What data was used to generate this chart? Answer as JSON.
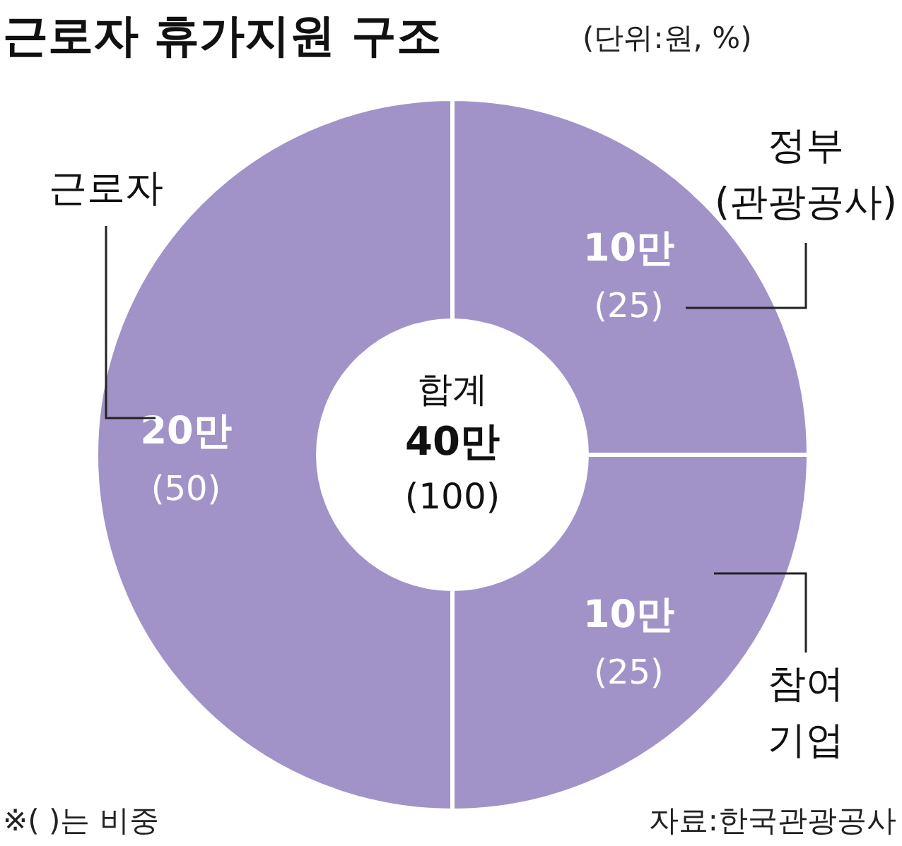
{
  "chart_data": {
    "type": "donut",
    "title": "근로자 휴가지원 구조",
    "subtitle": "(단위:원, %)",
    "categories": [
      "정부\n(관광공사)",
      "참여\n기업",
      "근로자"
    ],
    "values": [
      25,
      25,
      50
    ],
    "colors": [
      "#a193c8",
      "#a193c8",
      "#a193c8"
    ],
    "value_labels": [
      "10만\n(25)",
      "10만\n(25)",
      "20만\n(50)"
    ],
    "annotations": [
      "합계\n40만\n(100)",
      "※(   )는 비중",
      "자료:한국관광공사"
    ]
  }
}
